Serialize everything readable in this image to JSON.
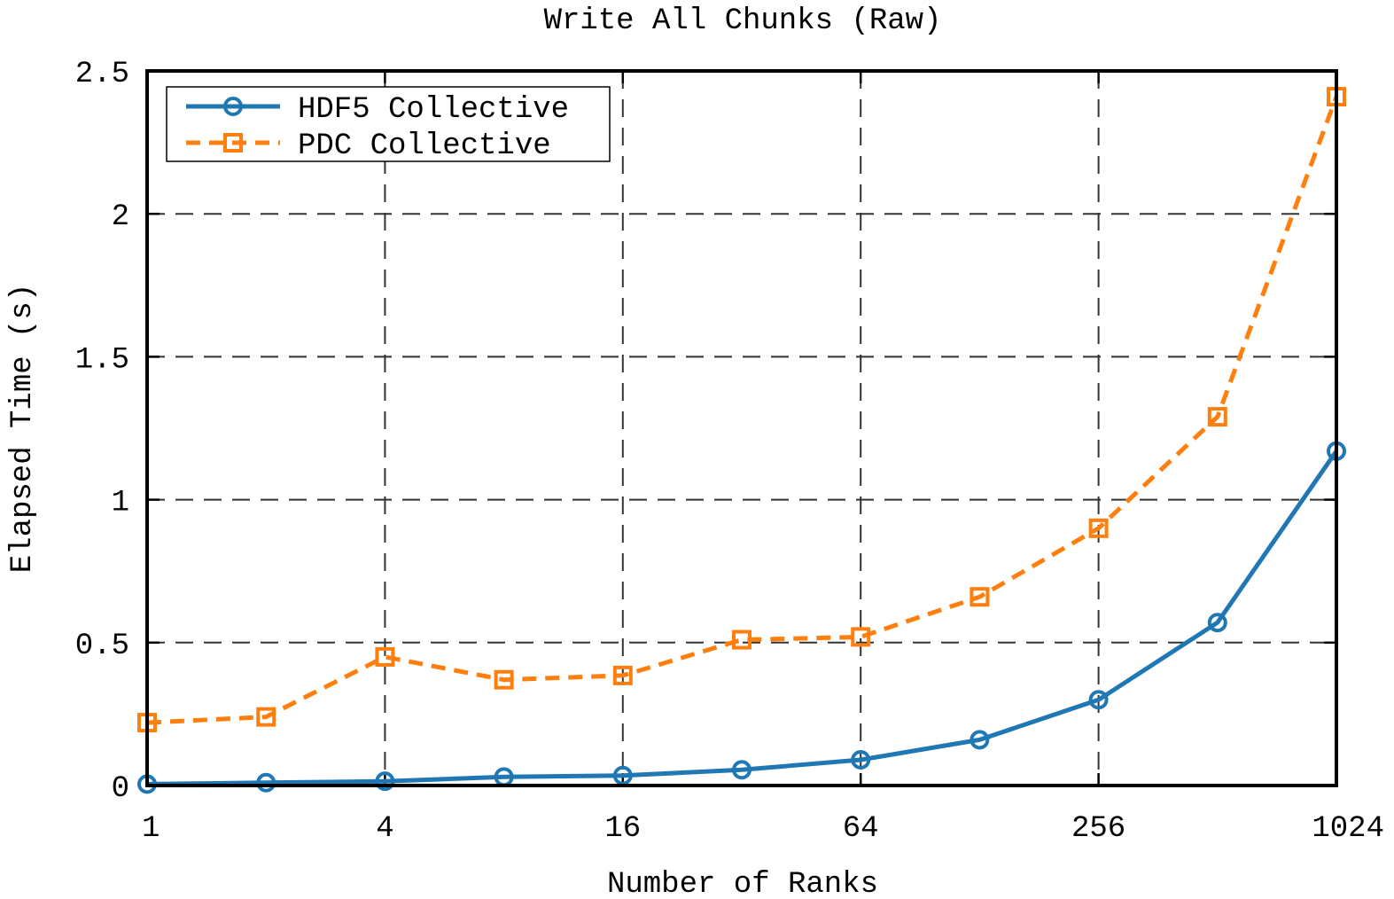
{
  "chart_data": {
    "type": "line",
    "title": "Write All Chunks (Raw)",
    "xlabel": "Number of Ranks",
    "ylabel": "Elapsed Time (s)",
    "x_scale": "log2",
    "xlim": [
      1,
      1024
    ],
    "ylim": [
      0,
      2.5
    ],
    "xticks": [
      1,
      4,
      16,
      64,
      256,
      1024
    ],
    "xtick_labels": [
      "1",
      "4",
      "16",
      "64",
      "256",
      "1024"
    ],
    "yticks": [
      0,
      0.5,
      1,
      1.5,
      2,
      2.5
    ],
    "ytick_labels": [
      "0",
      "0.5",
      "1",
      "1.5",
      "2",
      "2.5"
    ],
    "grid": true,
    "legend_position": "top-left",
    "x": [
      1,
      2,
      4,
      8,
      16,
      32,
      64,
      128,
      256,
      512,
      1024
    ],
    "series": [
      {
        "name": "HDF5 Collective",
        "color": "#1f77b4",
        "line_style": "solid",
        "marker": "circle",
        "values": [
          0.005,
          0.01,
          0.015,
          0.03,
          0.035,
          0.055,
          0.09,
          0.16,
          0.3,
          0.57,
          1.17
        ]
      },
      {
        "name": "PDC Collective",
        "color": "#ff7f0e",
        "line_style": "dashed",
        "marker": "square",
        "values": [
          0.22,
          0.24,
          0.45,
          0.37,
          0.385,
          0.51,
          0.52,
          0.66,
          0.9,
          1.29,
          2.41
        ]
      }
    ]
  }
}
